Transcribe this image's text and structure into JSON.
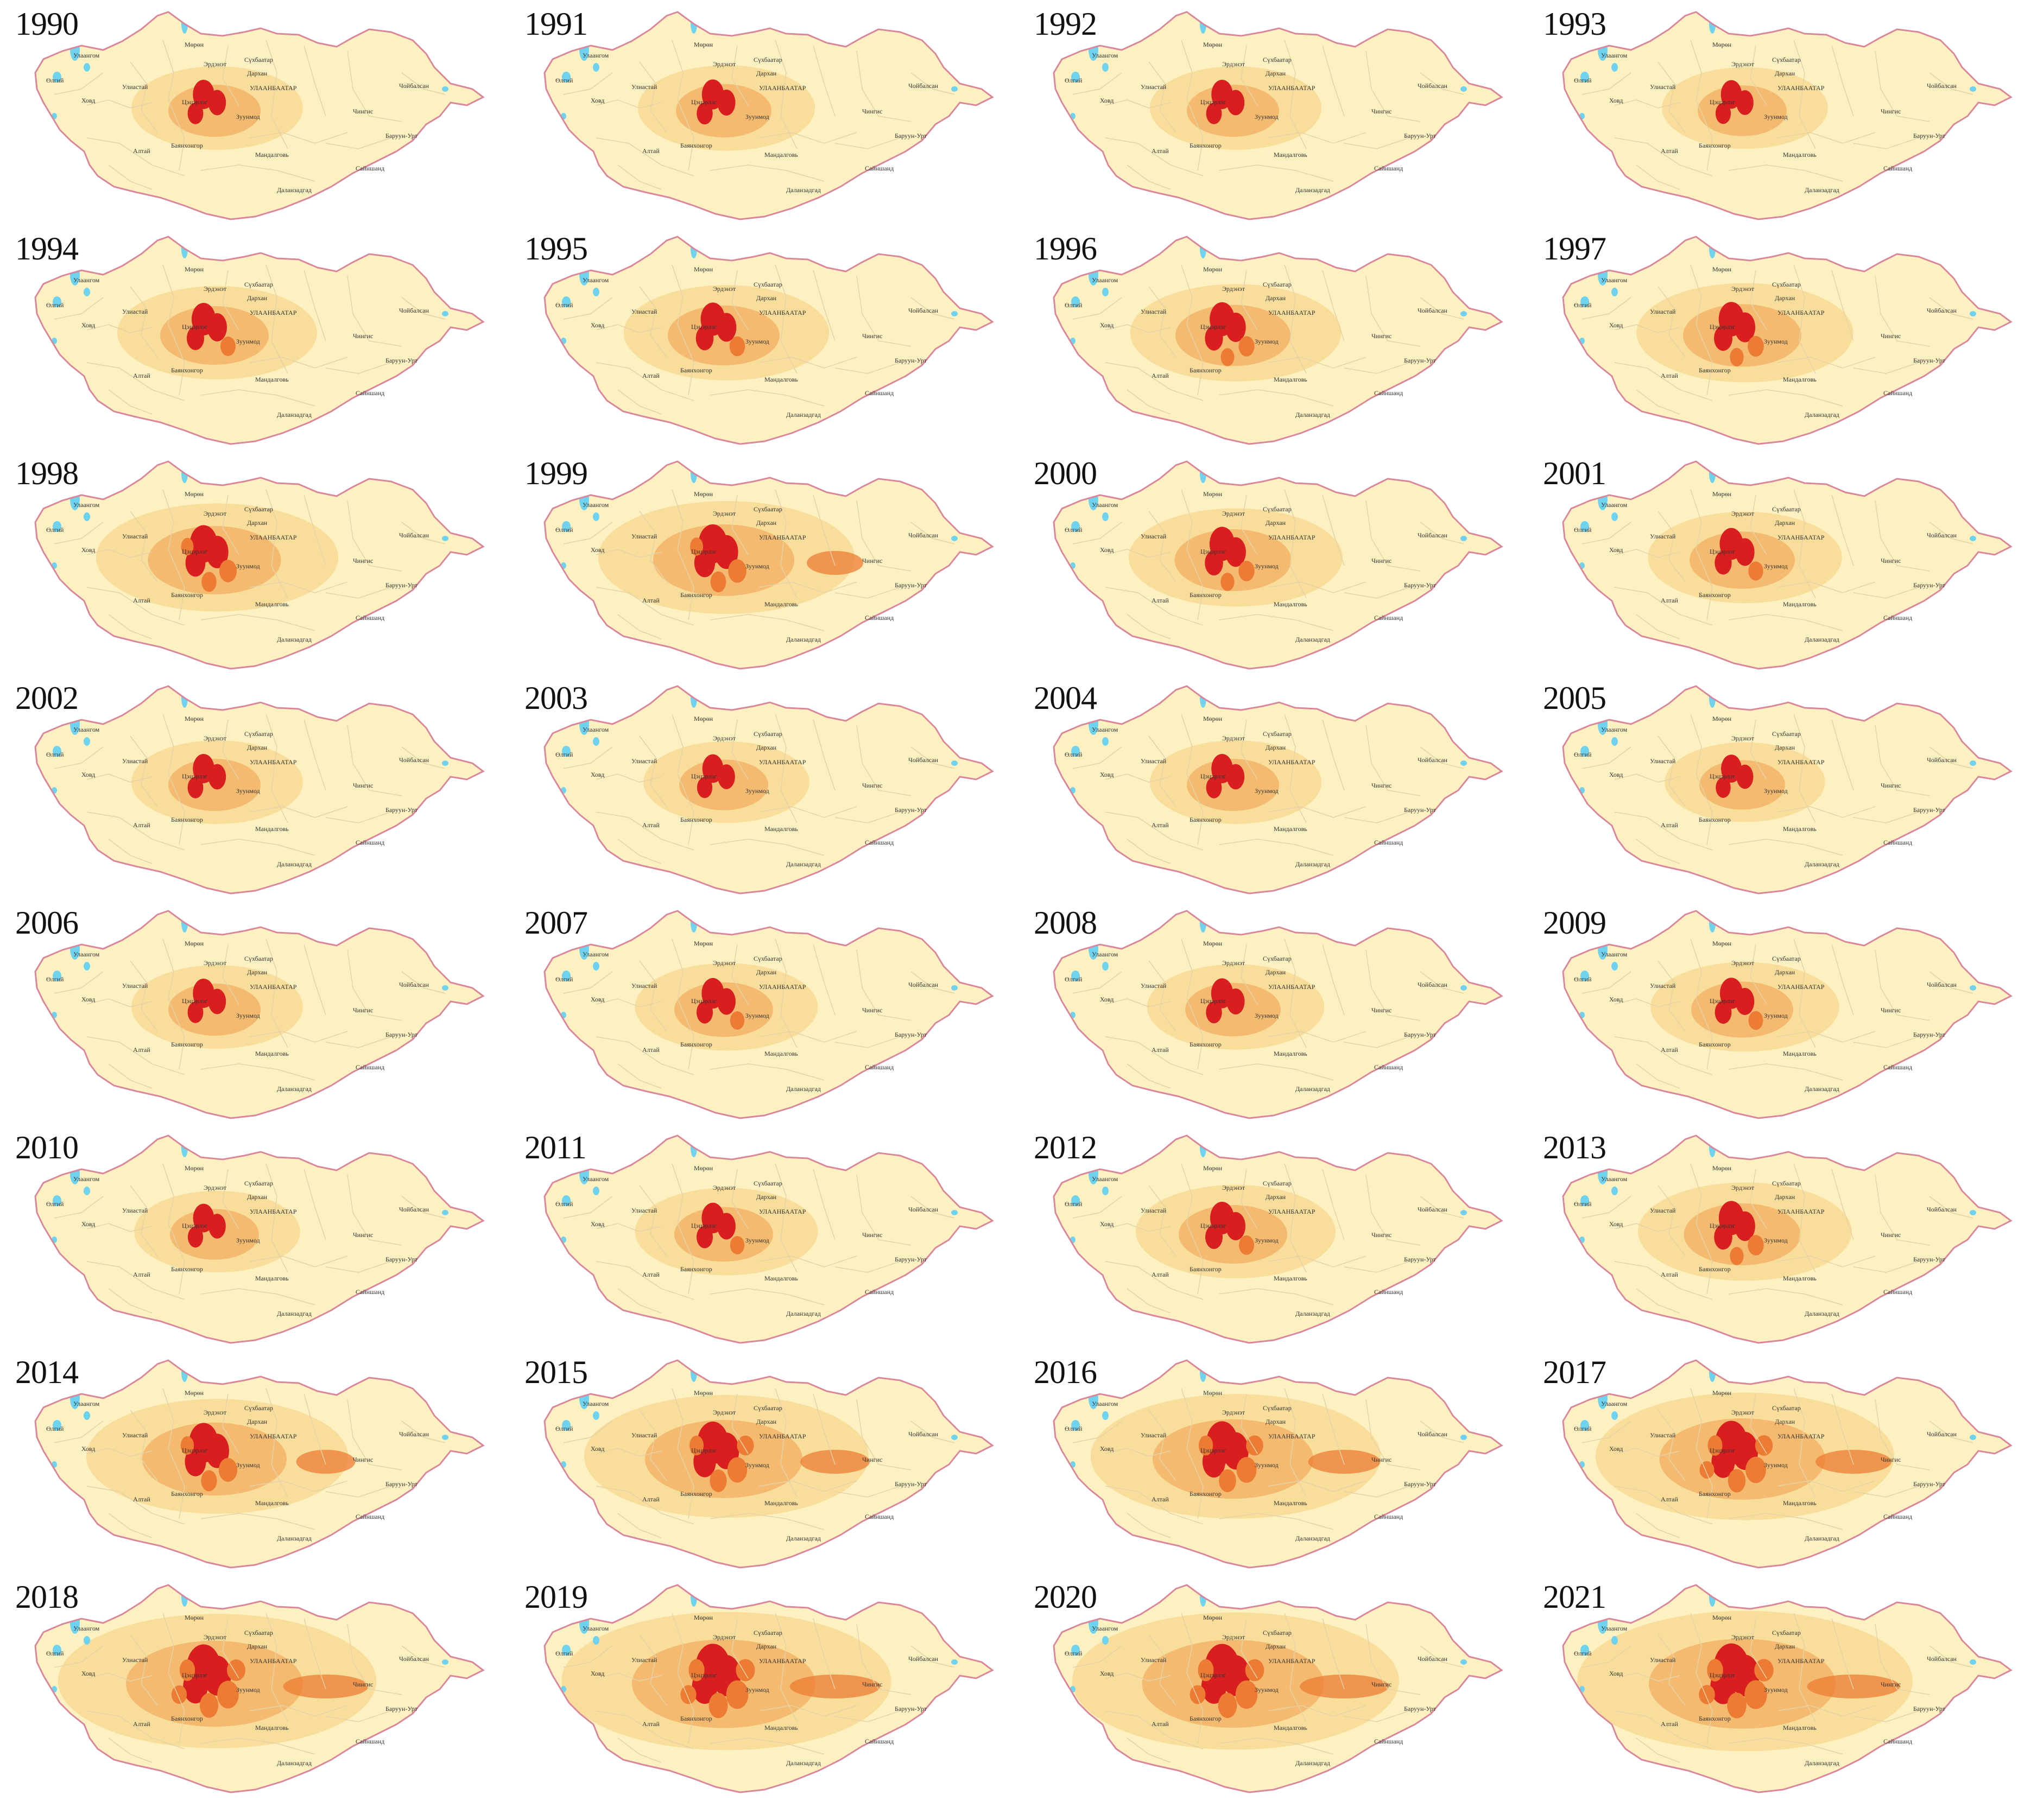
{
  "colors": {
    "land": "#fdf1c2",
    "border": "#d9879a",
    "district": "#e5d2a6",
    "lake": "#6fd2ee",
    "level1": "#f7d58c",
    "level2": "#f2ac5e",
    "level3": "#ec7c33",
    "level4": "#d81e1e"
  },
  "place_labels": [
    "Улаангом",
    "Мөрөн",
    "Өлгий",
    "Ховд",
    "Улиастай",
    "Эрдэнэт",
    "Сүхбаатар",
    "Дархан",
    "Цэцэрлэг",
    "УЛААНБААТАР",
    "Зуунмод",
    "Чойбалсан",
    "Чингис",
    "Баруун-Урт",
    "Алтай",
    "Баянхонгор",
    "Мандалговь",
    "Сайншанд",
    "Даланзадгад"
  ],
  "maps": [
    {
      "year": "1990",
      "intensity": 0.3
    },
    {
      "year": "1991",
      "intensity": 0.32
    },
    {
      "year": "1992",
      "intensity": 0.3
    },
    {
      "year": "1993",
      "intensity": 0.28
    },
    {
      "year": "1994",
      "intensity": 0.4
    },
    {
      "year": "1995",
      "intensity": 0.42
    },
    {
      "year": "1996",
      "intensity": 0.44
    },
    {
      "year": "1997",
      "intensity": 0.46
    },
    {
      "year": "1998",
      "intensity": 0.55
    },
    {
      "year": "1999",
      "intensity": 0.6
    },
    {
      "year": "2000",
      "intensity": 0.45
    },
    {
      "year": "2001",
      "intensity": 0.38
    },
    {
      "year": "2002",
      "intensity": 0.3
    },
    {
      "year": "2003",
      "intensity": 0.28
    },
    {
      "year": "2004",
      "intensity": 0.3
    },
    {
      "year": "2005",
      "intensity": 0.26
    },
    {
      "year": "2006",
      "intensity": 0.3
    },
    {
      "year": "2007",
      "intensity": 0.34
    },
    {
      "year": "2008",
      "intensity": 0.32
    },
    {
      "year": "2009",
      "intensity": 0.36
    },
    {
      "year": "2010",
      "intensity": 0.28
    },
    {
      "year": "2011",
      "intensity": 0.34
    },
    {
      "year": "2012",
      "intensity": 0.4
    },
    {
      "year": "2013",
      "intensity": 0.45
    },
    {
      "year": "2014",
      "intensity": 0.62
    },
    {
      "year": "2015",
      "intensity": 0.7
    },
    {
      "year": "2016",
      "intensity": 0.72
    },
    {
      "year": "2017",
      "intensity": 0.75
    },
    {
      "year": "2018",
      "intensity": 0.82
    },
    {
      "year": "2019",
      "intensity": 0.86
    },
    {
      "year": "2020",
      "intensity": 0.85
    },
    {
      "year": "2021",
      "intensity": 0.88
    }
  ]
}
